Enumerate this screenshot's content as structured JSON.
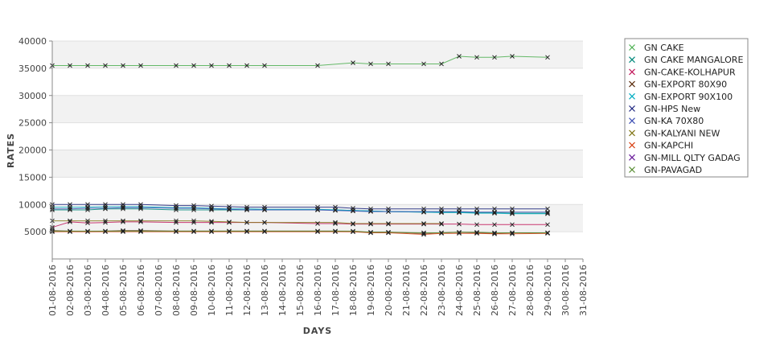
{
  "chart_data": {
    "type": "line",
    "xlabel": "DAYS",
    "ylabel": "RATES",
    "ylim": [
      0,
      40000
    ],
    "yticks": [
      5000,
      10000,
      15000,
      20000,
      25000,
      30000,
      35000,
      40000
    ],
    "grid": "alternating horizontal bands",
    "legend_position": "right",
    "categories": [
      "01-08-2016",
      "02-08-2016",
      "03-08-2016",
      "04-08-2016",
      "05-08-2016",
      "06-08-2016",
      "07-08-2016",
      "08-08-2016",
      "09-08-2016",
      "10-08-2016",
      "11-08-2016",
      "12-08-2016",
      "13-08-2016",
      "14-08-2016",
      "15-08-2016",
      "16-08-2016",
      "17-08-2016",
      "18-08-2016",
      "19-08-2016",
      "20-08-2016",
      "21-08-2016",
      "22-08-2016",
      "23-08-2016",
      "24-08-2016",
      "25-08-2016",
      "26-08-2016",
      "27-08-2016",
      "28-08-2016",
      "29-08-2016",
      "30-08-2016",
      "31-08-2016"
    ],
    "series": [
      {
        "name": "GN CAKE",
        "color": "#4caf50",
        "values": [
          35500,
          35500,
          35500,
          35500,
          35500,
          35500,
          null,
          35500,
          35500,
          35500,
          35500,
          35500,
          35500,
          null,
          null,
          35500,
          null,
          36000,
          35800,
          35800,
          null,
          35800,
          35800,
          37200,
          37000,
          37000,
          37200,
          null,
          37000,
          null,
          null
        ]
      },
      {
        "name": "GN CAKE MANGALORE",
        "color": "#00897b",
        "values": [
          9000,
          9000,
          9000,
          9200,
          9200,
          9200,
          null,
          9000,
          9000,
          9000,
          9000,
          9000,
          9000,
          null,
          null,
          9000,
          9000,
          8900,
          8800,
          8700,
          null,
          8600,
          8600,
          8600,
          8500,
          8500,
          8400,
          null,
          8400,
          null,
          null
        ]
      },
      {
        "name": "GN-CAKE-KOLHAPUR",
        "color": "#c2185b",
        "values": [
          5800,
          6800,
          6600,
          6700,
          6800,
          6800,
          null,
          6700,
          6700,
          6700,
          6700,
          6700,
          6700,
          null,
          null,
          6500,
          6500,
          6400,
          6400,
          6400,
          null,
          6400,
          6400,
          6400,
          6300,
          6300,
          6300,
          null,
          6300,
          null,
          null
        ]
      },
      {
        "name": "GN-EXPORT 80X90",
        "color": "#5d2e0f",
        "values": [
          5200,
          5100,
          5000,
          5100,
          5200,
          5200,
          null,
          5100,
          5100,
          5100,
          5100,
          5100,
          5100,
          null,
          null,
          5100,
          5100,
          5000,
          4900,
          4900,
          null,
          4700,
          4800,
          4900,
          4800,
          4700,
          4800,
          null,
          4800,
          null,
          null
        ]
      },
      {
        "name": "GN-EXPORT 90X100",
        "color": "#00acc1",
        "values": [
          9500,
          9500,
          9500,
          9600,
          9600,
          9600,
          null,
          9400,
          9400,
          9300,
          9200,
          9200,
          9100,
          null,
          null,
          9100,
          9000,
          8900,
          8800,
          8700,
          null,
          8600,
          8500,
          8500,
          8400,
          8400,
          8300,
          null,
          8300,
          null,
          null
        ]
      },
      {
        "name": "GN-HPS New",
        "color": "#1a237e",
        "values": [
          10000,
          10000,
          10000,
          10000,
          10000,
          10000,
          null,
          9800,
          9800,
          9700,
          9600,
          9500,
          9500,
          null,
          null,
          9500,
          9500,
          9300,
          9200,
          9200,
          null,
          9200,
          9200,
          9200,
          9200,
          9200,
          9200,
          null,
          9200,
          null,
          null
        ]
      },
      {
        "name": "GN-KA 70X80",
        "color": "#3f51b5",
        "values": [
          9200,
          9200,
          9300,
          9300,
          9400,
          9400,
          null,
          9300,
          9300,
          9200,
          9100,
          9000,
          9000,
          null,
          null,
          9000,
          8900,
          8800,
          8700,
          8700,
          null,
          8700,
          8700,
          8700,
          8600,
          8600,
          8600,
          null,
          8600,
          null,
          null
        ]
      },
      {
        "name": "GN-KALYANI NEW",
        "color": "#827717",
        "values": [
          7000,
          7000,
          7000,
          7000,
          7000,
          7000,
          null,
          7000,
          7000,
          6900,
          6800,
          6700,
          6700,
          null,
          null,
          null,
          6700,
          6500,
          6500,
          6500,
          null,
          6500,
          6500,
          null,
          null,
          null,
          null,
          null,
          null,
          null,
          null
        ]
      },
      {
        "name": "GN-KAPCHI",
        "color": "#d84315",
        "values": [
          5000,
          5000,
          5000,
          5000,
          5000,
          5000,
          null,
          5000,
          5000,
          5000,
          5000,
          5000,
          5000,
          null,
          null,
          5000,
          5000,
          5000,
          4800,
          4800,
          null,
          4500,
          4700,
          4700,
          4700,
          4600,
          4600,
          null,
          4700,
          null,
          null
        ]
      },
      {
        "name": "GN-MILL QLTY GADAG",
        "color": "#6a1b9a",
        "values": [
          5500,
          null,
          null,
          null,
          null,
          null,
          null,
          null,
          null,
          null,
          null,
          null,
          null,
          null,
          null,
          null,
          null,
          null,
          null,
          null,
          null,
          null,
          null,
          null,
          null,
          null,
          null,
          null,
          null,
          null,
          null
        ]
      },
      {
        "name": "GN-PAVAGAD",
        "color": "#558b2f",
        "values": [
          5100,
          5100,
          5100,
          5100,
          5100,
          5100,
          null,
          5100,
          5100,
          5100,
          5100,
          5100,
          5100,
          null,
          null,
          5100,
          5100,
          5100,
          4900,
          4900,
          null,
          4800,
          4800,
          4900,
          4900,
          4800,
          4800,
          null,
          4800,
          null,
          null
        ]
      }
    ]
  }
}
